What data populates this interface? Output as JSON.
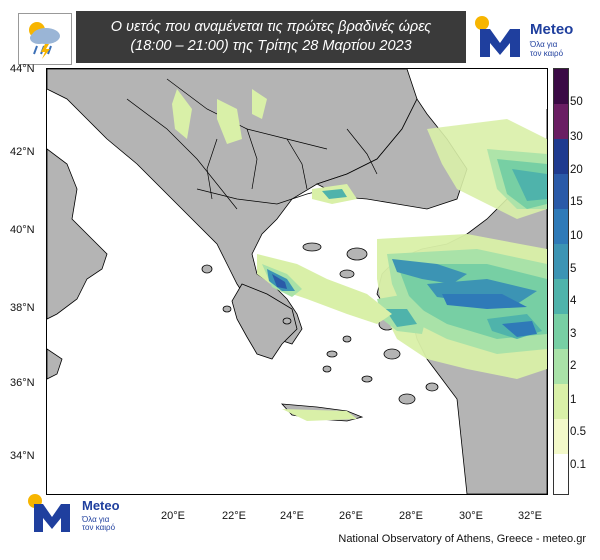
{
  "header": {
    "title_line1": "Ο υετός που αναμένεται τις πρώτες βραδινές ώρες",
    "title_line2": "(18:00 – 21:00) της Τρίτης 28 Μαρτίου 2023",
    "weather_icon": "rain-cloud-sun-icon",
    "title_bg_color": "#3a3a3a"
  },
  "brand": {
    "name": "Meteo",
    "tagline_line1": "Όλα για",
    "tagline_line2": "τον καιρό",
    "logo_icon": "meteo-m-logo-icon",
    "brand_color": "#1f3f9e",
    "sun_color": "#f7b500"
  },
  "map": {
    "latitude_labels": [
      "44°N",
      "42°N",
      "40°N",
      "38°N",
      "36°N",
      "34°N"
    ],
    "longitude_labels": [
      "20°E",
      "22°E",
      "24°E",
      "26°E",
      "28°E",
      "30°E",
      "32°E"
    ],
    "land_color": "#b4b4b4",
    "sea_color": "#ffffff",
    "border_color": "#000000"
  },
  "colorbar": {
    "labels": [
      "50",
      "30",
      "20",
      "15",
      "10",
      "5",
      "4",
      "3",
      "2",
      "1",
      "0.5",
      "0.1"
    ],
    "colors": [
      "#3b0a45",
      "#6a1e63",
      "#1f3b8f",
      "#2a5aa8",
      "#2f7ab8",
      "#3c94b4",
      "#4fb3ab",
      "#77cfa4",
      "#a9e2a8",
      "#d9f0a8",
      "#f3f9c9",
      "#ffffff"
    ]
  },
  "footer": {
    "credit": "National Observatory of Athens, Greece - meteo.gr"
  }
}
